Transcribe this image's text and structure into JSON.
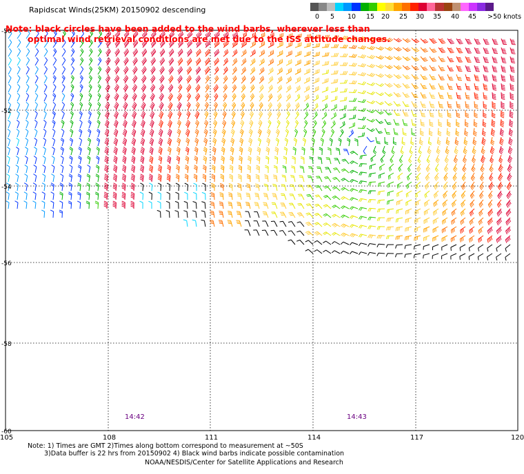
{
  "title": "Rapidscat Winds(25KM) 20150902 descending",
  "note": {
    "line1": "Note: black circles have been added to the wind barbs, wherever less than",
    "line2": "optimal wind retrieval conditions are met due to the ISS attitude changes."
  },
  "colorbar": {
    "labels": [
      "0",
      "5",
      "10",
      "15",
      "20",
      "25",
      "30",
      "35",
      "40",
      "45",
      ">50 knots"
    ],
    "colors": [
      "#555555",
      "#888888",
      "#bdbdbd",
      "#00d5ff",
      "#0099ff",
      "#0033ff",
      "#00b000",
      "#33cc00",
      "#ffff00",
      "#ffdd33",
      "#ffa400",
      "#ff7000",
      "#ff2200",
      "#dd0033",
      "#ff6699",
      "#bb3333",
      "#994411",
      "#c09070",
      "#ff66ff",
      "#cc33ff",
      "#8a2be2",
      "#5b1a8a"
    ]
  },
  "lat_labels": [
    "-50",
    "-52",
    "-54",
    "-56",
    "-58",
    "-60"
  ],
  "lon_labels": [
    "105",
    "108",
    "111",
    "114",
    "117",
    "120"
  ],
  "time_labels": [
    "14:42",
    "14:43"
  ],
  "footnotes": {
    "line1": "Note: 1) Times are GMT 2)Times along bottom correspond to measurement at ~50S",
    "line2": "3)Data buffer is 22 hrs from 20150902 4) Black wind barbs indicate possible contamination"
  },
  "credit": "NOAA/NESDIS/Center for Satellite Applications and Research"
}
